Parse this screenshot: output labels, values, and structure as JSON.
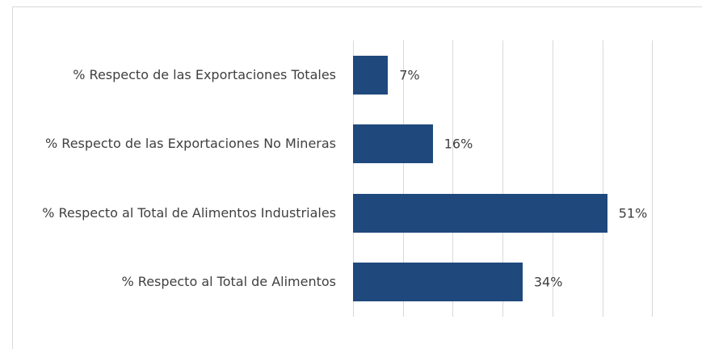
{
  "chart_data": {
    "type": "bar",
    "orientation": "horizontal",
    "categories": [
      "% Respecto de las Exportaciones Totales",
      "% Respecto de las Exportaciones No Mineras",
      "% Respecto al Total de Alimentos Industriales",
      "% Respecto al Total de Alimentos"
    ],
    "values": [
      7,
      16,
      51,
      34
    ],
    "value_labels": [
      "7%",
      "16%",
      "51%",
      "34%"
    ],
    "color": "#1f497d",
    "xlim": [
      0,
      70
    ],
    "xticks": [
      0,
      10,
      20,
      30,
      40,
      50,
      60
    ],
    "grid": true
  }
}
